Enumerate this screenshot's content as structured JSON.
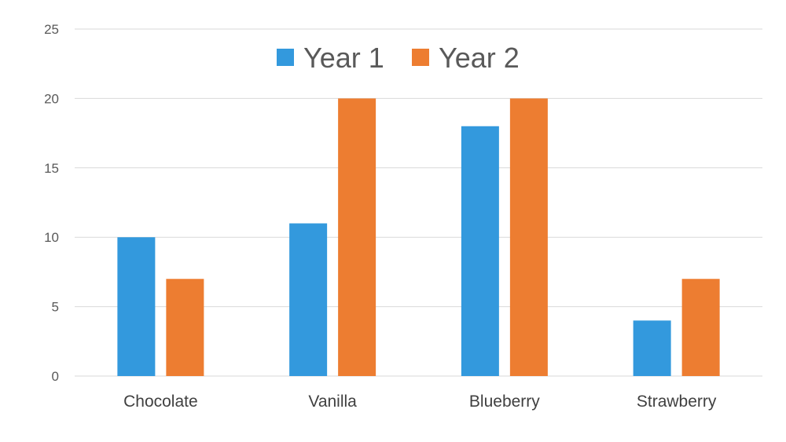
{
  "chart_data": {
    "type": "bar",
    "categories": [
      "Chocolate",
      "Vanilla",
      "Blueberry",
      "Strawberry"
    ],
    "series": [
      {
        "name": "Year 1",
        "values": [
          10,
          11,
          18,
          4
        ],
        "color": "#3399dd"
      },
      {
        "name": "Year 2",
        "values": [
          7,
          20,
          20,
          7
        ],
        "color": "#ed7d31"
      }
    ],
    "y_ticks": [
      "0",
      "5",
      "10",
      "15",
      "20",
      "25"
    ],
    "ylim": [
      0,
      25
    ],
    "grid": true,
    "legend_position": "top-center",
    "title": "",
    "xlabel": "",
    "ylabel": ""
  }
}
